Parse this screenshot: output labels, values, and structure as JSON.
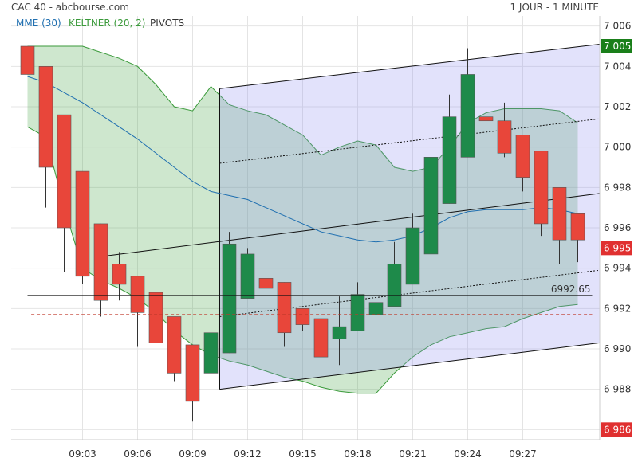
{
  "header": {
    "source": "CAC 40 - abcbourse.com",
    "period": "1 JOUR - 1 MINUTE"
  },
  "legend": [
    {
      "label": "MME (30)",
      "color": "#1f6fb0"
    },
    {
      "label": "KELTNER (20, 2)",
      "color": "#3a9a3a"
    },
    {
      "label": "PIVOTS",
      "color": "#333333"
    }
  ],
  "chart_data": {
    "type": "candlestick",
    "title": "CAC 40",
    "x_ticks": [
      "09:03",
      "09:06",
      "09:09",
      "09:12",
      "09:15",
      "09:18",
      "09:21",
      "09:24",
      "09:27"
    ],
    "y_ticks": [
      6986,
      6988,
      6990,
      6992,
      6994,
      6996,
      6998,
      7000,
      7002,
      7004,
      7006
    ],
    "ylim": [
      6985.5,
      7006.5
    ],
    "grid": true,
    "candles": [
      {
        "t": 0,
        "o": 7005.0,
        "h": 7005.0,
        "l": 7003.6,
        "c": 7003.6
      },
      {
        "t": 1,
        "o": 7004.0,
        "h": 7004.0,
        "l": 6997.0,
        "c": 6999.0
      },
      {
        "t": 2,
        "o": 7001.6,
        "h": 7001.6,
        "l": 6993.8,
        "c": 6996.0
      },
      {
        "t": 3,
        "o": 6998.8,
        "h": 6998.8,
        "l": 6993.2,
        "c": 6993.6
      },
      {
        "t": 4,
        "o": 6996.2,
        "h": 6996.2,
        "l": 6991.6,
        "c": 6992.4
      },
      {
        "t": 5,
        "o": 6994.2,
        "h": 6994.8,
        "l": 6992.4,
        "c": 6993.2
      },
      {
        "t": 6,
        "o": 6993.6,
        "h": 6993.6,
        "l": 6990.1,
        "c": 6991.8
      },
      {
        "t": 7,
        "o": 6992.8,
        "h": 6992.8,
        "l": 6989.9,
        "c": 6990.3
      },
      {
        "t": 8,
        "o": 6991.6,
        "h": 6991.6,
        "l": 6988.4,
        "c": 6988.8
      },
      {
        "t": 9,
        "o": 6990.2,
        "h": 6990.2,
        "l": 6986.4,
        "c": 6987.4
      },
      {
        "t": 10,
        "o": 6988.8,
        "h": 6994.7,
        "l": 6986.8,
        "c": 6990.8
      },
      {
        "t": 11,
        "o": 6989.8,
        "h": 6995.8,
        "l": 6989.8,
        "c": 6995.2
      },
      {
        "t": 12,
        "o": 6992.5,
        "h": 6995.0,
        "l": 6992.5,
        "c": 6994.7
      },
      {
        "t": 13,
        "o": 6993.5,
        "h": 6993.5,
        "l": 6992.6,
        "c": 6993.0
      },
      {
        "t": 14,
        "o": 6993.3,
        "h": 6993.3,
        "l": 6990.1,
        "c": 6990.8
      },
      {
        "t": 15,
        "o": 6992.0,
        "h": 6992.0,
        "l": 6990.9,
        "c": 6991.2
      },
      {
        "t": 16,
        "o": 6991.5,
        "h": 6991.5,
        "l": 6988.6,
        "c": 6989.6
      },
      {
        "t": 17,
        "o": 6990.5,
        "h": 6992.6,
        "l": 6989.2,
        "c": 6991.1
      },
      {
        "t": 18,
        "o": 6990.9,
        "h": 6993.3,
        "l": 6990.9,
        "c": 6992.7
      },
      {
        "t": 19,
        "o": 6991.7,
        "h": 6992.6,
        "l": 6991.2,
        "c": 6992.3
      },
      {
        "t": 20,
        "o": 6992.1,
        "h": 6995.3,
        "l": 6992.1,
        "c": 6994.2
      },
      {
        "t": 21,
        "o": 6993.2,
        "h": 6996.7,
        "l": 6993.2,
        "c": 6996.0
      },
      {
        "t": 22,
        "o": 6994.7,
        "h": 7000.0,
        "l": 6994.7,
        "c": 6999.5
      },
      {
        "t": 23,
        "o": 6997.2,
        "h": 7002.6,
        "l": 6997.2,
        "c": 7001.5
      },
      {
        "t": 24,
        "o": 6999.5,
        "h": 7004.9,
        "l": 6999.5,
        "c": 7003.6
      },
      {
        "t": 25,
        "o": 7001.5,
        "h": 7002.6,
        "l": 7001.2,
        "c": 7001.3
      },
      {
        "t": 26,
        "o": 7001.3,
        "h": 7002.2,
        "l": 6999.5,
        "c": 6999.7
      },
      {
        "t": 27,
        "o": 7000.6,
        "h": 7000.6,
        "l": 6997.8,
        "c": 6998.5
      },
      {
        "t": 28,
        "o": 6999.8,
        "h": 6999.8,
        "l": 6995.6,
        "c": 6996.2
      },
      {
        "t": 29,
        "o": 6998.0,
        "h": 6998.0,
        "l": 6994.2,
        "c": 6995.4
      },
      {
        "t": 30,
        "o": 6996.7,
        "h": 6996.7,
        "l": 6994.3,
        "c": 6995.4
      }
    ],
    "mme": [
      7003.5,
      7003.2,
      7002.7,
      7002.2,
      7001.6,
      7001.0,
      7000.4,
      6999.7,
      6999.0,
      6998.3,
      6997.8,
      6997.6,
      6997.4,
      6997.0,
      6996.6,
      6996.2,
      6995.8,
      6995.6,
      6995.4,
      6995.3,
      6995.4,
      6995.6,
      6996.0,
      6996.5,
      6996.8,
      6996.9,
      6996.9,
      6996.9,
      6997.0,
      6996.9,
      6996.7
    ],
    "keltner_upper": [
      7005.0,
      7005.0,
      7005.0,
      7005.0,
      7004.7,
      7004.4,
      7004.0,
      7003.1,
      7002.0,
      7001.8,
      7003.0,
      7002.1,
      7001.8,
      7001.6,
      7001.1,
      7000.6,
      6999.6,
      7000.0,
      7000.3,
      7000.1,
      6999.0,
      6998.8,
      6999.0,
      7000.0,
      7001.2,
      7001.7,
      7001.9,
      7001.9,
      7001.9,
      7001.8,
      7001.2
    ],
    "keltner_lower": [
      7001.0,
      7000.5,
      6997.0,
      6994.0,
      6993.4,
      6993.0,
      6992.5,
      6991.8,
      6990.9,
      6990.2,
      6989.7,
      6989.4,
      6989.2,
      6988.9,
      6988.6,
      6988.4,
      6988.1,
      6987.9,
      6987.8,
      6987.8,
      6988.8,
      6989.6,
      6990.2,
      6990.6,
      6990.8,
      6991.0,
      6991.1,
      6991.5,
      6991.8,
      6992.1,
      6992.2
    ],
    "channel": {
      "upper": [
        7002.9,
        7005.1
      ],
      "upper_dotted": [
        6999.2,
        7001.4
      ],
      "mid": [
        6995.4,
        6997.7
      ],
      "lower_dotted": [
        6991.6,
        6993.9
      ],
      "lower": [
        6988.0,
        6990.3
      ]
    },
    "pivot_line": {
      "value": 6992.65,
      "label": "6992.65"
    },
    "red_dashed": 6991.7,
    "price_badges": [
      {
        "label": "7 005",
        "value": 7005.0,
        "color": "#1a7f1a"
      },
      {
        "label": "6 995",
        "value": 6995.0,
        "color": "#e03030"
      },
      {
        "label": "6 986",
        "value": 6986.0,
        "color": "#e03030"
      }
    ]
  }
}
